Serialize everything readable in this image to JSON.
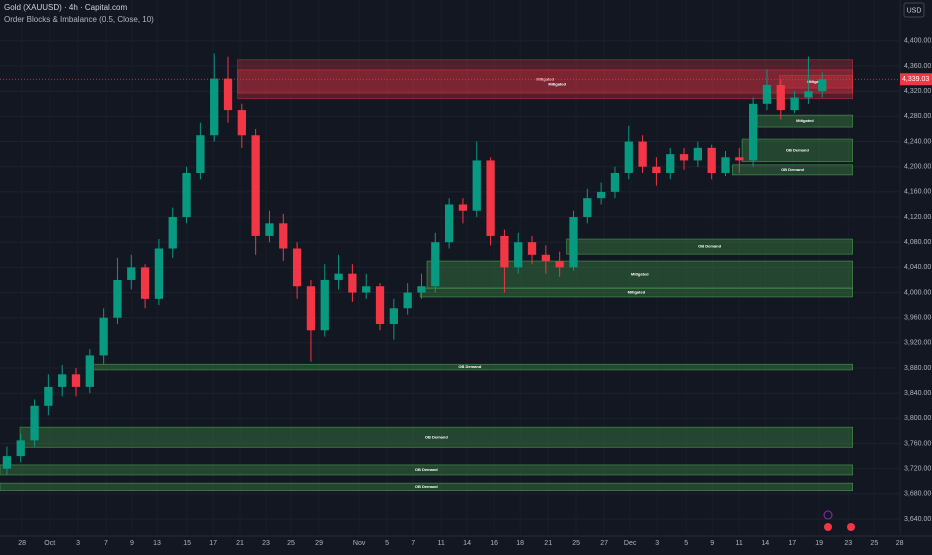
{
  "chart_data": {
    "type": "candlestick",
    "title": "Gold (XAUUSD) · 4h · Capital.com",
    "subtitle": "Order Blocks & Imbalance (0.5, Close, 10)",
    "currency": "USD",
    "up_color": "#089981",
    "down_color": "#f23645",
    "xlim": [
      0,
      65.2
    ],
    "ylim": [
      3613,
      4465
    ],
    "x": [
      0.5,
      1.5,
      2.5,
      3.5,
      4.5,
      5.5,
      6.5,
      7.5,
      8.5,
      9.5,
      10.5,
      11.5,
      12.5,
      13.5,
      14.5,
      15.5,
      16.5,
      17.5,
      18.5,
      19.5,
      20.5,
      21.5,
      22.5,
      23.5,
      24.5,
      25.5,
      26.5,
      27.5,
      28.5,
      29.5,
      30.5,
      31.5,
      32.5,
      33.5,
      34.5,
      35.5,
      36.5,
      37.5,
      38.5,
      39.5,
      40.5,
      41.5,
      42.5,
      43.5,
      44.5,
      45.5,
      46.5,
      47.5,
      48.5,
      49.5,
      50.5,
      51.5,
      52.5,
      53.5,
      54.5,
      55.5,
      56.5,
      57.5,
      58.5,
      59.5
    ],
    "open": [
      3720,
      3740,
      3765,
      3820,
      3850,
      3870,
      3850,
      3900,
      3960,
      4020,
      4040,
      3990,
      4070,
      4120,
      4190,
      4250,
      4340,
      4290,
      4250,
      4090,
      4110,
      4070,
      4010,
      3940,
      4020,
      4030,
      4000,
      4010,
      3950,
      3975,
      4000,
      4010,
      4080,
      4140,
      4130,
      4210,
      4090,
      4040,
      4080,
      4060,
      4050,
      4040,
      4120,
      4150,
      4160,
      4190,
      4240,
      4200,
      4190,
      4220,
      4210,
      4230,
      4190,
      4215,
      4210,
      4300,
      4330,
      4290,
      4310,
      4320
    ],
    "high": [
      3755,
      3775,
      3830,
      3870,
      3885,
      3880,
      3910,
      3975,
      4055,
      4060,
      4045,
      4085,
      4135,
      4200,
      4270,
      4380,
      4375,
      4300,
      4260,
      4130,
      4125,
      4080,
      4020,
      4045,
      4060,
      4045,
      4030,
      4015,
      3990,
      4015,
      4030,
      4095,
      4150,
      4150,
      4240,
      4215,
      4100,
      4095,
      4090,
      4075,
      4065,
      4130,
      4165,
      4175,
      4200,
      4265,
      4250,
      4215,
      4230,
      4230,
      4240,
      4235,
      4225,
      4230,
      4310,
      4355,
      4340,
      4320,
      4375,
      4350
    ],
    "low": [
      3710,
      3730,
      3755,
      3805,
      3835,
      3835,
      3840,
      3885,
      3950,
      4005,
      3975,
      3980,
      4055,
      4110,
      4180,
      4240,
      4270,
      4230,
      4060,
      4080,
      4050,
      3990,
      3890,
      3930,
      4005,
      3985,
      3990,
      3940,
      3925,
      3965,
      3990,
      4000,
      4070,
      4110,
      4120,
      4075,
      4000,
      4030,
      4045,
      4030,
      4025,
      4035,
      4110,
      4140,
      4150,
      4180,
      4190,
      4170,
      4180,
      4195,
      4200,
      4180,
      4185,
      4190,
      4200,
      4290,
      4275,
      4285,
      4300,
      4310
    ],
    "close": [
      3740,
      3765,
      3820,
      3850,
      3870,
      3850,
      3900,
      3960,
      4020,
      4040,
      3990,
      4070,
      4120,
      4190,
      4250,
      4340,
      4290,
      4250,
      4090,
      4110,
      4070,
      4010,
      3940,
      4020,
      4030,
      4000,
      4010,
      3950,
      3975,
      4000,
      4010,
      4080,
      4140,
      4130,
      4210,
      4090,
      4040,
      4080,
      4060,
      4050,
      4040,
      4120,
      4150,
      4160,
      4190,
      4240,
      4200,
      4190,
      4220,
      4210,
      4230,
      4190,
      4215,
      4210,
      4300,
      4330,
      4290,
      4310,
      4320,
      4339.03
    ],
    "last_price": {
      "value": 4339.03,
      "label": "4,339.03"
    },
    "zones": [
      {
        "label": "Mitigated",
        "kind": "supply",
        "top": 4370,
        "bottom": 4308,
        "start": 17.2,
        "end": 61.7
      },
      {
        "label": "Mitigated",
        "kind": "supply",
        "top": 4354,
        "bottom": 4317,
        "start": 17.2,
        "end": 61.7
      },
      {
        "label": "Mitigated",
        "kind": "supply",
        "top": 4345,
        "bottom": 4325,
        "start": 56.4,
        "end": 61.7
      },
      {
        "label": "Mitigated",
        "kind": "demand",
        "top": 4282,
        "bottom": 4263,
        "start": 54.8,
        "end": 61.7
      },
      {
        "label": "OB Demand",
        "kind": "demand",
        "top": 4244,
        "bottom": 4208,
        "start": 53.7,
        "end": 61.7
      },
      {
        "label": "OB Demand",
        "kind": "demand",
        "top": 4203,
        "bottom": 4187,
        "start": 53.0,
        "end": 61.7
      },
      {
        "label": "OB Demand",
        "kind": "demand",
        "top": 4085,
        "bottom": 4061,
        "start": 41.0,
        "end": 61.7
      },
      {
        "label": "Mitigated",
        "kind": "demand",
        "top": 4050,
        "bottom": 4007,
        "start": 30.9,
        "end": 61.7
      },
      {
        "label": "Mitigated",
        "kind": "demand",
        "top": 4007,
        "bottom": 3993,
        "start": 30.4,
        "end": 61.7
      },
      {
        "label": "OB Demand",
        "kind": "demand",
        "top": 3886,
        "bottom": 3877,
        "start": 6.3,
        "end": 61.7
      },
      {
        "label": "OB Demand",
        "kind": "demand",
        "top": 3786,
        "bottom": 3754,
        "start": 1.45,
        "end": 61.7
      },
      {
        "label": "OB Demand",
        "kind": "demand",
        "top": 3726,
        "bottom": 3710,
        "start": 0,
        "end": 61.7
      },
      {
        "label": "OB Demand",
        "kind": "demand",
        "top": 3697,
        "bottom": 3685,
        "start": 0,
        "end": 61.7
      }
    ],
    "yticks": [
      {
        "value": 3640,
        "label": "3,640.00"
      },
      {
        "value": 3680,
        "label": "3,680.00"
      },
      {
        "value": 3720,
        "label": "3,720.00"
      },
      {
        "value": 3760,
        "label": "3,760.00"
      },
      {
        "value": 3800,
        "label": "3,800.00"
      },
      {
        "value": 3840,
        "label": "3,840.00"
      },
      {
        "value": 3880,
        "label": "3,880.00"
      },
      {
        "value": 3920,
        "label": "3,920.00"
      },
      {
        "value": 3960,
        "label": "3,960.00"
      },
      {
        "value": 4000,
        "label": "4,000.00"
      },
      {
        "value": 4040,
        "label": "4,040.00"
      },
      {
        "value": 4080,
        "label": "4,080.00"
      },
      {
        "value": 4120,
        "label": "4,120.00"
      },
      {
        "value": 4160,
        "label": "4,160.00"
      },
      {
        "value": 4200,
        "label": "4,200.00"
      },
      {
        "value": 4240,
        "label": "4,240.00"
      },
      {
        "value": 4280,
        "label": "4,280.00"
      },
      {
        "value": 4320,
        "label": "4,320.00"
      },
      {
        "value": 4360,
        "label": "4,360.00"
      },
      {
        "value": 4400,
        "label": "4,400.00"
      }
    ],
    "xticks": [
      {
        "value": 1.6,
        "label": "28"
      },
      {
        "value": 3.6,
        "label": "Oct"
      },
      {
        "value": 5.65,
        "label": "3"
      },
      {
        "value": 7.67,
        "label": "7"
      },
      {
        "value": 9.55,
        "label": "9"
      },
      {
        "value": 11.36,
        "label": "13"
      },
      {
        "value": 13.54,
        "label": "15"
      },
      {
        "value": 15.42,
        "label": "17"
      },
      {
        "value": 17.37,
        "label": "21"
      },
      {
        "value": 19.25,
        "label": "23"
      },
      {
        "value": 21.06,
        "label": "25"
      },
      {
        "value": 23.09,
        "label": "29"
      },
      {
        "value": 25.99,
        "label": "Nov"
      },
      {
        "value": 28.01,
        "label": "5"
      },
      {
        "value": 29.9,
        "label": "7"
      },
      {
        "value": 31.92,
        "label": "11"
      },
      {
        "value": 33.8,
        "label": "14"
      },
      {
        "value": 35.76,
        "label": "16"
      },
      {
        "value": 37.64,
        "label": "18"
      },
      {
        "value": 39.67,
        "label": "21"
      },
      {
        "value": 41.69,
        "label": "25"
      },
      {
        "value": 43.72,
        "label": "27"
      },
      {
        "value": 45.6,
        "label": "Dec"
      },
      {
        "value": 47.56,
        "label": "3"
      },
      {
        "value": 49.66,
        "label": "5"
      },
      {
        "value": 51.54,
        "label": "9"
      },
      {
        "value": 53.49,
        "label": "11"
      },
      {
        "value": 55.38,
        "label": "14"
      },
      {
        "value": 57.33,
        "label": "17"
      },
      {
        "value": 59.28,
        "label": "19"
      },
      {
        "value": 61.38,
        "label": "23"
      },
      {
        "value": 63.27,
        "label": "25"
      },
      {
        "value": 65.1,
        "label": "28"
      }
    ]
  }
}
